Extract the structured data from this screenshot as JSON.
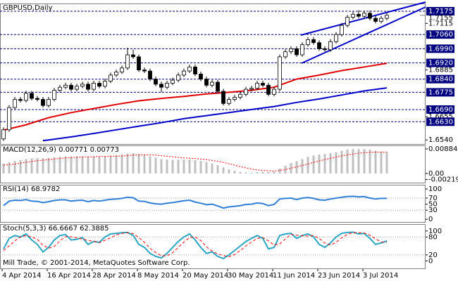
{
  "chart_data": [
    {
      "type": "candlestick",
      "title": "GBPUSD,Daily",
      "categories": [
        "4 Apr 2014",
        null,
        null,
        null,
        null,
        null,
        null,
        null,
        "16 Apr 2014",
        null,
        null,
        null,
        null,
        null,
        null,
        null,
        "28 Apr 2014",
        null,
        null,
        null,
        null,
        null,
        null,
        null,
        "8 May 2014",
        null,
        null,
        null,
        null,
        null,
        null,
        null,
        "20 May 2014",
        null,
        null,
        null,
        null,
        null,
        null,
        null,
        "30 May 2014",
        null,
        null,
        null,
        null,
        null,
        null,
        null,
        "11 Jun 2014",
        null,
        null,
        null,
        null,
        null,
        null,
        null,
        "23 Jun 2014",
        null,
        null,
        null,
        null,
        null,
        null,
        null,
        "3 Jul 2014",
        null,
        null,
        null,
        null
      ],
      "open": [
        1.6545,
        1.659,
        1.67,
        1.674,
        1.6735,
        1.677,
        1.6745,
        1.674,
        1.671,
        1.674,
        1.6785,
        1.68,
        1.681,
        1.679,
        1.6805,
        1.6815,
        1.679,
        1.682,
        1.6805,
        1.683,
        1.686,
        1.6875,
        1.6895,
        1.696,
        1.695,
        1.6885,
        1.688,
        1.684,
        1.6815,
        1.68,
        1.682,
        1.6835,
        1.686,
        1.688,
        1.69,
        1.6865,
        1.684,
        1.681,
        1.6825,
        1.678,
        1.672,
        1.674,
        1.675,
        1.6765,
        1.679,
        1.6795,
        1.682,
        1.681,
        1.6765,
        1.679,
        1.695,
        1.6975,
        1.699,
        1.696,
        1.701,
        1.7035,
        1.702,
        1.699,
        1.6985,
        1.7025,
        1.706,
        1.7105,
        1.7145,
        1.716,
        1.715,
        1.7165,
        1.714,
        1.7125,
        1.714
      ],
      "high": [
        1.6602,
        1.6712,
        1.6752,
        1.6752,
        1.6782,
        1.6782,
        1.6757,
        1.6752,
        1.6752,
        1.6797,
        1.6812,
        1.6822,
        1.6822,
        1.6817,
        1.6827,
        1.6827,
        1.6832,
        1.6832,
        1.6842,
        1.6872,
        1.6887,
        1.6907,
        1.6995,
        1.6985,
        1.6962,
        1.6897,
        1.6892,
        1.6852,
        1.6827,
        1.6832,
        1.6847,
        1.6872,
        1.6892,
        1.6912,
        1.6912,
        1.6877,
        1.6852,
        1.6837,
        1.6837,
        1.6792,
        1.6752,
        1.6762,
        1.6777,
        1.6802,
        1.6807,
        1.6832,
        1.6832,
        1.6822,
        1.6802,
        1.6962,
        1.6987,
        1.7002,
        1.7002,
        1.7022,
        1.7047,
        1.7047,
        1.7032,
        1.7002,
        1.7037,
        1.7072,
        1.7117,
        1.7157,
        1.7172,
        1.718,
        1.7177,
        1.7177,
        1.7152,
        1.7152,
        1.7167
      ],
      "low": [
        1.6535,
        1.658,
        1.669,
        1.6725,
        1.6725,
        1.6735,
        1.673,
        1.67,
        1.67,
        1.673,
        1.6775,
        1.679,
        1.678,
        1.678,
        1.6795,
        1.678,
        1.678,
        1.6795,
        1.6795,
        1.682,
        1.685,
        1.6865,
        1.6885,
        1.694,
        1.6875,
        1.687,
        1.683,
        1.6805,
        1.6775,
        1.679,
        1.681,
        1.6825,
        1.685,
        1.687,
        1.6855,
        1.683,
        1.68,
        1.68,
        1.677,
        1.671,
        1.671,
        1.673,
        1.674,
        1.6755,
        1.678,
        1.6785,
        1.68,
        1.6755,
        1.6755,
        1.678,
        1.694,
        1.6965,
        1.695,
        1.695,
        1.7,
        1.701,
        1.698,
        1.6975,
        1.6975,
        1.7015,
        1.705,
        1.7095,
        1.7135,
        1.714,
        1.714,
        1.713,
        1.7115,
        1.7115,
        1.713
      ],
      "close": [
        1.659,
        1.67,
        1.674,
        1.6735,
        1.677,
        1.6745,
        1.674,
        1.671,
        1.674,
        1.6785,
        1.68,
        1.681,
        1.679,
        1.6805,
        1.6815,
        1.679,
        1.682,
        1.6805,
        1.683,
        1.686,
        1.6875,
        1.6895,
        1.696,
        1.695,
        1.6885,
        1.688,
        1.684,
        1.6815,
        1.68,
        1.682,
        1.6835,
        1.686,
        1.688,
        1.69,
        1.6865,
        1.684,
        1.681,
        1.6825,
        1.678,
        1.672,
        1.674,
        1.675,
        1.6765,
        1.679,
        1.6795,
        1.682,
        1.681,
        1.6765,
        1.679,
        1.695,
        1.6975,
        1.699,
        1.696,
        1.701,
        1.7035,
        1.702,
        1.699,
        1.6985,
        1.7025,
        1.706,
        1.7105,
        1.7145,
        1.716,
        1.715,
        1.7165,
        1.714,
        1.7125,
        1.714,
        1.7155
      ],
      "up_color": "#ffffff",
      "down_color": "#000000",
      "moving_averages": [
        {
          "color": "#e00000",
          "x": [
            0,
            4,
            8,
            12,
            16,
            20,
            24,
            28,
            32,
            36,
            40,
            44,
            48,
            52,
            56,
            60,
            64,
            68
          ],
          "values": [
            1.6588,
            1.6615,
            1.665,
            1.6675,
            1.6695,
            1.6715,
            1.6733,
            1.6745,
            1.6755,
            1.6767,
            1.6775,
            1.6785,
            1.68,
            1.684,
            1.686,
            1.6882,
            1.69,
            1.6918
          ]
        },
        {
          "color": "#0000c8",
          "x": [
            7,
            8,
            12,
            16,
            20,
            24,
            28,
            32,
            36,
            40,
            44,
            48,
            52,
            56,
            60,
            64,
            68
          ],
          "values": [
            1.6537,
            1.654,
            1.6555,
            1.6572,
            1.659,
            1.6608,
            1.6625,
            1.6645,
            1.666,
            1.6675,
            1.669,
            1.6705,
            1.6725,
            1.6742,
            1.6762,
            1.6782,
            1.6797
          ]
        }
      ],
      "ylim": [
        1.652,
        1.7213
      ],
      "yticks": [
        1.7115,
        1.6885,
        1.6655,
        {
          "value": 1.654,
          "label": "1.6540"
        }
      ],
      "levels": [
        1.7175,
        {
          "value": 1.706,
          "label": "1.7060"
        },
        {
          "value": 1.699,
          "label": "1.6990"
        },
        {
          "value": 1.692,
          "label": "1.6920"
        },
        {
          "value": 1.684,
          "label": "1.6840"
        },
        1.6775,
        {
          "value": 1.669,
          "label": "1.6690"
        },
        {
          "value": 1.663,
          "label": "1.6630"
        }
      ],
      "level_color": "#000080",
      "level_labels": true,
      "last_price": 1.7155
    },
    {
      "type": "macd",
      "title": "MACD(12,26,9) 0.00771 0.00773",
      "series": [
        {
          "color": "#c0c0c0",
          "style": "bar",
          "values": [
            0.0035,
            0.004,
            0.0045,
            0.0048,
            0.0052,
            0.0054,
            0.0055,
            0.0055,
            0.0056,
            0.0058,
            0.006,
            0.0061,
            0.0061,
            0.0062,
            0.0062,
            0.0061,
            0.0062,
            0.0062,
            0.0063,
            0.0064,
            0.0066,
            0.0068,
            0.0072,
            0.0073,
            0.007,
            0.0066,
            0.0062,
            0.0057,
            0.0052,
            0.005,
            0.0049,
            0.0049,
            0.005,
            0.005,
            0.0048,
            0.0045,
            0.0041,
            0.0036,
            0.003,
            0.0022,
            0.0015,
            0.001,
            0.0006,
            0.0004,
            0.0003,
            0.0005,
            0.0006,
            0.0005,
            0.0007,
            0.0018,
            0.0028,
            0.0038,
            0.0044,
            0.0052,
            0.006,
            0.0065,
            0.0068,
            0.007,
            0.0073,
            0.0077,
            0.0082,
            0.0086,
            0.0088,
            0.0088,
            0.0088,
            0.0086,
            0.0082,
            0.0079,
            0.00771
          ]
        },
        {
          "color": "#ff0000",
          "style": "dotted",
          "values": [
            0.003,
            0.0032,
            0.0034,
            0.0037,
            0.004,
            0.0043,
            0.0046,
            0.0048,
            0.005,
            0.0052,
            0.0054,
            0.0056,
            0.0057,
            0.0058,
            0.0059,
            0.006,
            0.006,
            0.0061,
            0.0061,
            0.0062,
            0.0062,
            0.0063,
            0.0064,
            0.0066,
            0.0067,
            0.0067,
            0.0067,
            0.0066,
            0.0064,
            0.0062,
            0.006,
            0.0058,
            0.0056,
            0.0055,
            0.0054,
            0.0052,
            0.005,
            0.0047,
            0.0044,
            0.004,
            0.0035,
            0.003,
            0.0025,
            0.002,
            0.0016,
            0.0013,
            0.0011,
            0.001,
            0.0009,
            0.0011,
            0.0014,
            0.0019,
            0.0024,
            0.0029,
            0.0034,
            0.004,
            0.0045,
            0.005,
            0.0055,
            0.0059,
            0.0063,
            0.0067,
            0.007,
            0.0073,
            0.0075,
            0.0076,
            0.0077,
            0.0077,
            0.00773
          ]
        }
      ],
      "ylim": [
        -0.0033,
        0.0101
      ],
      "yticks": [
        0.00884,
        {
          "value": 0,
          "label": "0.00"
        },
        -0.00219
      ]
    },
    {
      "type": "line",
      "title": "RSI(14) 68.9782",
      "series": [
        {
          "color": "#2f7fd8",
          "style": "solid",
          "values": [
            45,
            60,
            63,
            62,
            65,
            60,
            59,
            55,
            58,
            62,
            64,
            64,
            60,
            62,
            63,
            58,
            62,
            60,
            63,
            66,
            67,
            69,
            73,
            71,
            60,
            59,
            54,
            51,
            50,
            53,
            55,
            58,
            61,
            63,
            57,
            53,
            48,
            50,
            44,
            37,
            41,
            43,
            45,
            49,
            50,
            54,
            52,
            45,
            49,
            67,
            69,
            70,
            65,
            70,
            72,
            69,
            64,
            63,
            67,
            70,
            73,
            75,
            76,
            74,
            75,
            70,
            67,
            69,
            68.9782
          ]
        }
      ],
      "ylim": [
        -9,
        114
      ],
      "yticks": [
        100,
        70,
        50,
        30,
        0
      ],
      "levels": [
        70,
        30
      ]
    },
    {
      "type": "line",
      "title": "Stoch(5,3,3) 66.6667 62.3885",
      "annotation": "Mill Trade, © 2001-2014, MetaQuotes Software Corp.",
      "series": [
        {
          "color": "#2aa6c4",
          "style": "solid",
          "values": [
            40,
            75,
            85,
            80,
            90,
            70,
            55,
            30,
            45,
            70,
            85,
            88,
            70,
            72,
            78,
            55,
            65,
            62,
            80,
            90,
            92,
            94,
            95,
            85,
            55,
            45,
            25,
            15,
            10,
            25,
            45,
            65,
            80,
            90,
            70,
            45,
            25,
            30,
            15,
            8,
            20,
            35,
            50,
            65,
            75,
            85,
            75,
            40,
            45,
            85,
            90,
            92,
            75,
            85,
            90,
            80,
            55,
            45,
            60,
            80,
            92,
            95,
            96,
            90,
            92,
            75,
            55,
            60,
            66.6667
          ]
        },
        {
          "color": "#ff0000",
          "style": "dashed",
          "values": [
            35,
            50,
            67,
            80,
            85,
            80,
            72,
            52,
            43,
            48,
            67,
            81,
            81,
            77,
            73,
            68,
            66,
            61,
            69,
            77,
            87,
            92,
            94,
            91,
            78,
            62,
            42,
            28,
            17,
            17,
            27,
            45,
            63,
            78,
            80,
            68,
            47,
            33,
            23,
            18,
            14,
            21,
            35,
            50,
            63,
            75,
            78,
            67,
            53,
            57,
            73,
            89,
            86,
            84,
            83,
            85,
            75,
            60,
            53,
            62,
            77,
            89,
            94,
            94,
            93,
            86,
            74,
            63,
            62.3885
          ]
        }
      ],
      "ylim": [
        -25,
        123
      ],
      "yticks": [
        100,
        80,
        20,
        0
      ],
      "levels": [
        80,
        20
      ]
    }
  ]
}
